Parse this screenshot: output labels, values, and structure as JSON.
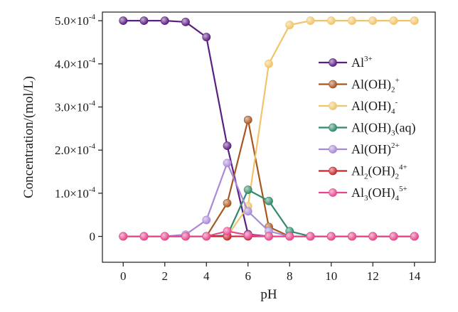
{
  "chart_data": {
    "type": "line",
    "xlabel": "pH",
    "ylabel": "Concentration/(mol/L)",
    "xlim": [
      -1,
      15
    ],
    "ylim": [
      -6e-05,
      0.00052
    ],
    "x_ticks": [
      0,
      2,
      4,
      6,
      8,
      10,
      12,
      14
    ],
    "x_tick_labels": [
      "0",
      "2",
      "4",
      "6",
      "8",
      "10",
      "12",
      "14"
    ],
    "y_ticks": [
      0,
      0.0001,
      0.0002,
      0.0003,
      0.0004,
      0.0005
    ],
    "y_tick_labels": [
      {
        "mant": "0",
        "exp": ""
      },
      {
        "mant": "1.0×10",
        "exp": "-4"
      },
      {
        "mant": "2.0×10",
        "exp": "-4"
      },
      {
        "mant": "3.0×10",
        "exp": "-4"
      },
      {
        "mant": "4.0×10",
        "exp": "-4"
      },
      {
        "mant": "5.0×10",
        "exp": "-4"
      }
    ],
    "grid": false,
    "legend_position": "right",
    "x": [
      0,
      1,
      2,
      3,
      4,
      5,
      6,
      7,
      8,
      9,
      10,
      11,
      12,
      13,
      14
    ],
    "series": [
      {
        "name": "Al3+",
        "legend": [
          {
            "t": "Al",
            "k": "n"
          },
          {
            "t": "3+",
            "k": "sup"
          }
        ],
        "color": "#5b1e82",
        "values": [
          0.0005,
          0.0005,
          0.0005,
          0.000497,
          0.000462,
          0.00021,
          5e-06,
          0,
          0,
          0,
          0,
          0,
          0,
          0,
          0
        ]
      },
      {
        "name": "Al(OH)2+",
        "legend": [
          {
            "t": "Al(OH)",
            "k": "n"
          },
          {
            "t": "2",
            "k": "sub"
          },
          {
            "t": "+",
            "k": "sup"
          }
        ],
        "color": "#a8561f",
        "values": [
          0,
          0,
          0,
          0,
          0,
          7.7e-05,
          0.00027,
          2.2e-05,
          0,
          0,
          0,
          0,
          0,
          0,
          0
        ]
      },
      {
        "name": "Al(OH)4-",
        "legend": [
          {
            "t": "Al(OH)",
            "k": "n"
          },
          {
            "t": "4",
            "k": "sub"
          },
          {
            "t": "-",
            "k": "sup"
          }
        ],
        "color": "#f0c46a",
        "values": [
          0,
          0,
          0,
          0,
          0,
          0,
          7e-05,
          0.0004,
          0.00049,
          0.0005,
          0.0005,
          0.0005,
          0.0005,
          0.0005,
          0.0005
        ]
      },
      {
        "name": "Al(OH)3(aq)",
        "legend": [
          {
            "t": "Al(OH)",
            "k": "n"
          },
          {
            "t": "3",
            "k": "sub"
          },
          {
            "t": "(aq)",
            "k": "n"
          }
        ],
        "color": "#2f8a6a",
        "values": [
          0,
          0,
          0,
          0,
          0,
          2e-06,
          0.000108,
          8.2e-05,
          1.2e-05,
          0,
          0,
          0,
          0,
          0,
          0
        ]
      },
      {
        "name": "Al(OH)2+",
        "legend": [
          {
            "t": "Al(OH)",
            "k": "n"
          },
          {
            "t": "2+",
            "k": "sup"
          }
        ],
        "color": "#a98ad6",
        "values": [
          0,
          0,
          0,
          4e-06,
          3.8e-05,
          0.00017,
          5.8e-05,
          1.2e-05,
          0,
          0,
          0,
          0,
          0,
          0,
          0
        ]
      },
      {
        "name": "Al2(OH)24+",
        "legend": [
          {
            "t": "Al",
            "k": "n"
          },
          {
            "t": "2",
            "k": "sub"
          },
          {
            "t": "(OH)",
            "k": "n"
          },
          {
            "t": "2",
            "k": "sub"
          },
          {
            "t": "4+",
            "k": "sup"
          }
        ],
        "color": "#c8282c",
        "values": [
          0,
          0,
          0,
          0,
          0,
          0,
          0,
          0,
          0,
          0,
          0,
          0,
          0,
          0,
          0
        ]
      },
      {
        "name": "Al3(OH)45+",
        "legend": [
          {
            "t": "Al",
            "k": "n"
          },
          {
            "t": "3",
            "k": "sub"
          },
          {
            "t": "(OH)",
            "k": "n"
          },
          {
            "t": "4",
            "k": "sub"
          },
          {
            "t": "5+",
            "k": "sup"
          }
        ],
        "color": "#e8478f",
        "values": [
          0,
          0,
          0,
          0,
          0,
          1.2e-05,
          3e-06,
          0,
          0,
          0,
          0,
          0,
          0,
          0,
          0
        ]
      }
    ]
  }
}
